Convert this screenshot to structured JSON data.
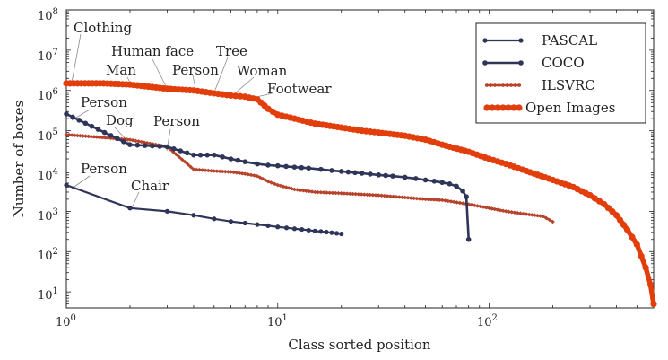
{
  "chart_data": {
    "type": "line",
    "xlabel": "Class sorted position",
    "ylabel": "Number of boxes",
    "x_scale": "log",
    "y_scale": "log",
    "xlim": [
      1,
      600
    ],
    "ylim": [
      4,
      100000000
    ],
    "x_ticks": [
      {
        "value": 1,
        "label": "10",
        "exp": "0"
      },
      {
        "value": 10,
        "label": "10",
        "exp": "1"
      },
      {
        "value": 100,
        "label": "10",
        "exp": "2"
      }
    ],
    "y_ticks": [
      {
        "value": 10,
        "label": "10",
        "exp": "1"
      },
      {
        "value": 100,
        "label": "10",
        "exp": "2"
      },
      {
        "value": 1000,
        "label": "10",
        "exp": "3"
      },
      {
        "value": 10000,
        "label": "10",
        "exp": "4"
      },
      {
        "value": 100000,
        "label": "10",
        "exp": "5"
      },
      {
        "value": 1000000,
        "label": "10",
        "exp": "6"
      },
      {
        "value": 10000000,
        "label": "10",
        "exp": "7"
      },
      {
        "value": 100000000,
        "label": "10",
        "exp": "8"
      }
    ],
    "grid": false,
    "legend_position": "top-right",
    "series": [
      {
        "name": "PASCAL",
        "color": "#2e3558",
        "x": [
          1,
          2,
          3,
          4,
          5,
          6,
          7,
          8,
          9,
          10,
          11,
          12,
          13,
          14,
          15,
          16,
          17,
          18,
          19,
          20
        ],
        "y": [
          4500,
          1200,
          1000,
          800,
          650,
          560,
          510,
          470,
          440,
          410,
          390,
          370,
          355,
          340,
          325,
          315,
          305,
          295,
          285,
          275
        ]
      },
      {
        "name": "COCO",
        "color": "#2e3558",
        "x": [
          1,
          2,
          3,
          4,
          5,
          6,
          7,
          8,
          9,
          10,
          12,
          14,
          16,
          18,
          20,
          25,
          30,
          35,
          40,
          45,
          50,
          55,
          60,
          65,
          70,
          75,
          78,
          80
        ],
        "y": [
          260000,
          45000,
          40000,
          25000,
          25000,
          20000,
          17000,
          15000,
          14000,
          13500,
          12500,
          11800,
          11000,
          10300,
          9800,
          8800,
          8000,
          7500,
          7000,
          6500,
          6000,
          5600,
          5200,
          4800,
          4200,
          3200,
          2300,
          200
        ]
      },
      {
        "name": "ILSVRC",
        "color": "#b6432a",
        "x": [
          1,
          2,
          3,
          4,
          5,
          6,
          7,
          8,
          9,
          10,
          12,
          15,
          20,
          30,
          40,
          50,
          60,
          80,
          100,
          120,
          150,
          180,
          200
        ],
        "y": [
          80000,
          60000,
          40000,
          11000,
          10000,
          9500,
          8500,
          7500,
          5500,
          4500,
          3500,
          3000,
          2800,
          2500,
          2200,
          2000,
          1900,
          1500,
          1200,
          1000,
          850,
          750,
          550
        ]
      },
      {
        "name": "Open Images",
        "color": "#e23e0c",
        "x": [
          1,
          1.5,
          2,
          3,
          4,
          5,
          6,
          7,
          8,
          9,
          10,
          12,
          15,
          20,
          25,
          30,
          40,
          50,
          60,
          80,
          100,
          120,
          150,
          200,
          250,
          300,
          350,
          400,
          450,
          500,
          550,
          580,
          600
        ],
        "y": [
          1500000,
          1500000,
          1400000,
          1100000,
          1000000,
          850000,
          750000,
          700000,
          600000,
          350000,
          250000,
          200000,
          150000,
          120000,
          100000,
          90000,
          75000,
          60000,
          45000,
          30000,
          20000,
          15000,
          10000,
          6000,
          4000,
          2500,
          1500,
          800,
          350,
          150,
          40,
          15,
          5
        ]
      }
    ],
    "annotations": [
      {
        "text": "Clothing"
      },
      {
        "text": "Human face"
      },
      {
        "text": "Man"
      },
      {
        "text": "Tree"
      },
      {
        "text": "Person"
      },
      {
        "text": "Woman"
      },
      {
        "text": "Footwear"
      },
      {
        "text": "Person"
      },
      {
        "text": "Dog"
      },
      {
        "text": "Person"
      },
      {
        "text": "Person"
      },
      {
        "text": "Chair"
      }
    ]
  }
}
